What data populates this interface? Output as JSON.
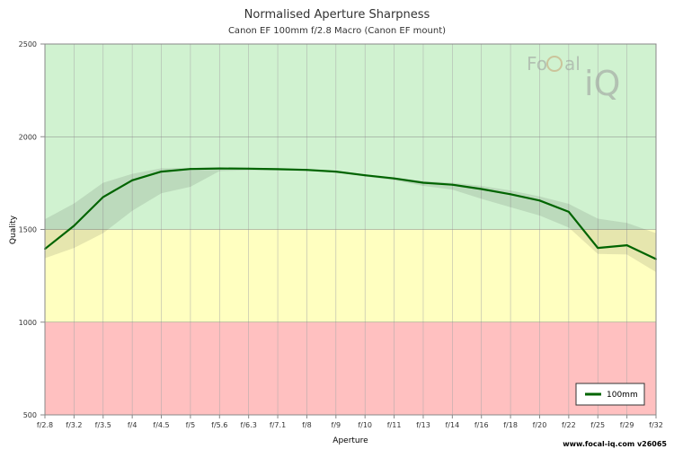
{
  "chart_data": {
    "type": "line",
    "title": "Normalised Aperture Sharpness",
    "subtitle": "Canon EF 100mm f/2.8 Macro (Canon EF mount)",
    "xlabel": "Aperture",
    "ylabel": "Quality",
    "ylim": [
      500,
      2500
    ],
    "yticks": [
      500,
      1000,
      1500,
      2000,
      2500
    ],
    "grid": true,
    "legend_position": "bottom-right",
    "categories": [
      "f/2.8",
      "f/3.2",
      "f/3.5",
      "f/4",
      "f/4.5",
      "f/5",
      "f/5.6",
      "f/6.3",
      "f/7.1",
      "f/8",
      "f/9",
      "f/10",
      "f/11",
      "f/13",
      "f/14",
      "f/16",
      "f/18",
      "f/20",
      "f/22",
      "f/25",
      "f/29",
      "f/32"
    ],
    "bands": [
      {
        "from": 500,
        "to": 1000,
        "color": "#ffc0c0"
      },
      {
        "from": 1000,
        "to": 1500,
        "color": "#ffffc0"
      },
      {
        "from": 1500,
        "to": 2500,
        "color": "#d0f2d0"
      }
    ],
    "series": [
      {
        "name": "100mm",
        "color": "#006400",
        "values": [
          1395,
          1520,
          1675,
          1765,
          1812,
          1826,
          1829,
          1828,
          1825,
          1821,
          1812,
          1792,
          1775,
          1752,
          1741,
          1718,
          1690,
          1656,
          1595,
          1400,
          1415,
          1340
        ],
        "band_upper": [
          1555,
          1640,
          1752,
          1800,
          1830,
          1832,
          1834,
          1833,
          1829,
          1824,
          1816,
          1798,
          1781,
          1761,
          1752,
          1735,
          1710,
          1678,
          1638,
          1558,
          1535,
          1480
        ],
        "band_lower": [
          1345,
          1400,
          1480,
          1600,
          1695,
          1730,
          1815,
          1818,
          1818,
          1815,
          1806,
          1785,
          1765,
          1735,
          1715,
          1665,
          1620,
          1575,
          1510,
          1368,
          1365,
          1270
        ]
      }
    ]
  },
  "watermark": {
    "text_left": "Fo",
    "text_c": "C",
    "text_mid": "al",
    "text_right": "iQ"
  },
  "footer": "www.focal-iq.com  v26065"
}
